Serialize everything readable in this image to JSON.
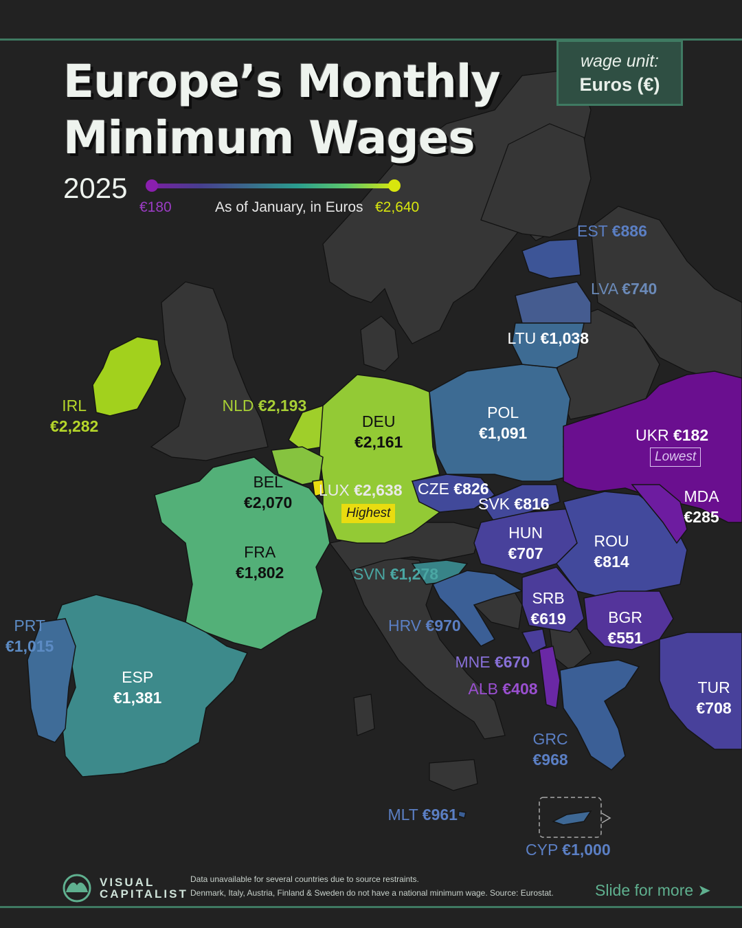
{
  "title_lines": [
    "Europe’s Monthly",
    "Minimum Wages"
  ],
  "year": "2025",
  "unit_box": {
    "label": "wage unit:",
    "value": "Euros (€)"
  },
  "legend": {
    "min": "€180",
    "max": "€2,640",
    "caption": "As of January, in Euros",
    "min_color": "#8a1fae",
    "max_color": "#d8e60e"
  },
  "countries": [
    {
      "code": "IRL",
      "value": "€2,282",
      "color": "#a2d11d"
    },
    {
      "code": "NLD",
      "value": "€2,193",
      "color": "#9fcf2a"
    },
    {
      "code": "DEU",
      "value": "€2,161",
      "color": "#93ca35"
    },
    {
      "code": "BEL",
      "value": "€2,070",
      "color": "#86c33f"
    },
    {
      "code": "LUX",
      "value": "€2,638",
      "color": "#e9dc10",
      "tag": "Highest"
    },
    {
      "code": "FRA",
      "value": "€1,802",
      "color": "#53b078"
    },
    {
      "code": "ESP",
      "value": "€1,381",
      "color": "#3d8a8b"
    },
    {
      "code": "PRT",
      "value": "€1,015",
      "color": "#3f6c98"
    },
    {
      "code": "POL",
      "value": "€1,091",
      "color": "#3d6b93"
    },
    {
      "code": "CZE",
      "value": "€826",
      "color": "#41499a"
    },
    {
      "code": "SVK",
      "value": "€816",
      "color": "#42489a"
    },
    {
      "code": "HUN",
      "value": "€707",
      "color": "#48419b"
    },
    {
      "code": "ROU",
      "value": "€814",
      "color": "#42499c"
    },
    {
      "code": "SVN",
      "value": "€1,278",
      "color": "#388488"
    },
    {
      "code": "HRV",
      "value": "€970",
      "color": "#3b5f96"
    },
    {
      "code": "SRB",
      "value": "€619",
      "color": "#4b3c9a"
    },
    {
      "code": "BGR",
      "value": "€551",
      "color": "#54349b"
    },
    {
      "code": "MNE",
      "value": "€670",
      "color": "#4a3e9b"
    },
    {
      "code": "ALB",
      "value": "€408",
      "color": "#6a28a5"
    },
    {
      "code": "GRC",
      "value": "€968",
      "color": "#3b5f96"
    },
    {
      "code": "TUR",
      "value": "€708",
      "color": "#48419b"
    },
    {
      "code": "EST",
      "value": "€886",
      "color": "#3d5597"
    },
    {
      "code": "LVA",
      "value": "€740",
      "color": "#455c90"
    },
    {
      "code": "LTU",
      "value": "€1,038",
      "color": "#3d6b93"
    },
    {
      "code": "UKR",
      "value": "€182",
      "color": "#6a0f8f",
      "tag": "Lowest"
    },
    {
      "code": "MDA",
      "value": "€285",
      "color": "#6d1ca0"
    },
    {
      "code": "MLT",
      "value": "€961",
      "color": "#3b5f96"
    },
    {
      "code": "CYP",
      "value": "€1,000",
      "color": "#3e6895"
    }
  ],
  "footer": {
    "logo_lines": [
      "VISUAL",
      "CAPITALIST"
    ],
    "note_lines": [
      "Data unavailable for several countries due to source restraints.",
      "Denmark, Italy, Austria,  Finland & Sweden do not have a national minimum wage. Source: Eurostat."
    ],
    "slide": "Slide for more ➤"
  },
  "colors": {
    "background": "#222222",
    "no_data_land": "#363636",
    "border": "#8a8a8a",
    "accent": "#3f7a62"
  }
}
